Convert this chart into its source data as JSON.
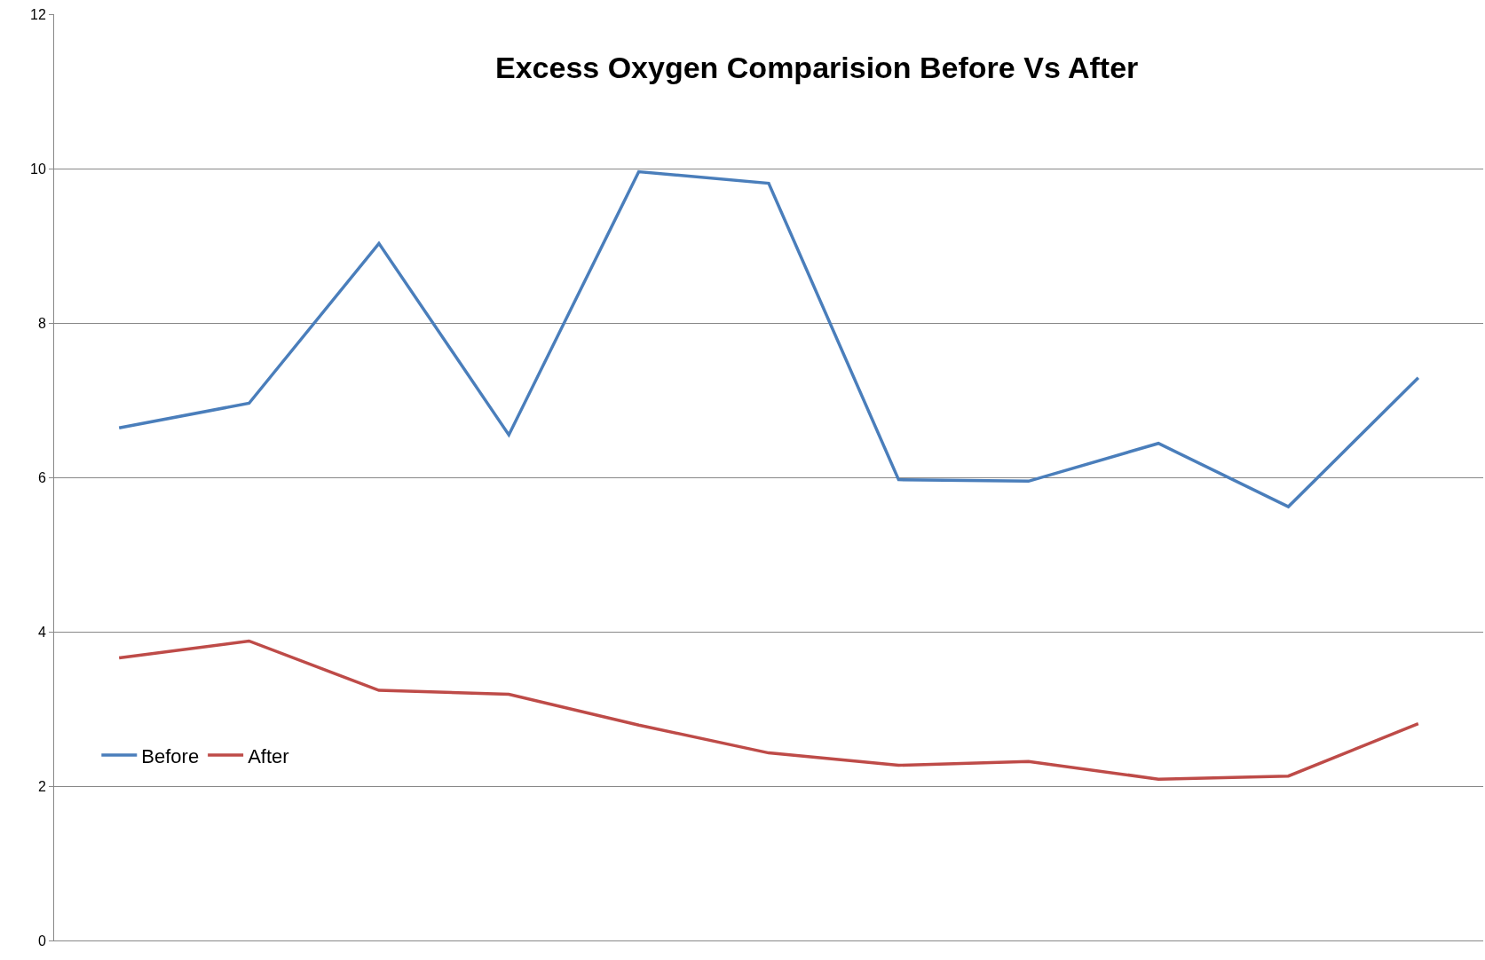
{
  "chart_data": {
    "type": "line",
    "title": "Excess Oxygen Comparision Before Vs After",
    "categories": [
      null,
      null,
      null,
      null,
      null,
      null,
      null,
      null,
      null,
      null,
      null
    ],
    "series": [
      {
        "name": "Before",
        "color": "#4a7ebb",
        "values": [
          6.64,
          6.96,
          9.03,
          6.55,
          9.96,
          9.81,
          5.97,
          5.95,
          6.44,
          5.62,
          7.29
        ]
      },
      {
        "name": "After",
        "color": "#be4b48",
        "values": [
          3.66,
          3.88,
          3.24,
          3.19,
          2.79,
          2.43,
          2.27,
          2.32,
          2.09,
          2.13,
          2.81
        ]
      }
    ],
    "ylim": [
      0,
      12
    ],
    "yticks": [
      0,
      2,
      4,
      6,
      8,
      10,
      12
    ],
    "grid": "y",
    "legend": "left",
    "tick_labels": "y",
    "marker": "none",
    "line_style": "solid"
  }
}
